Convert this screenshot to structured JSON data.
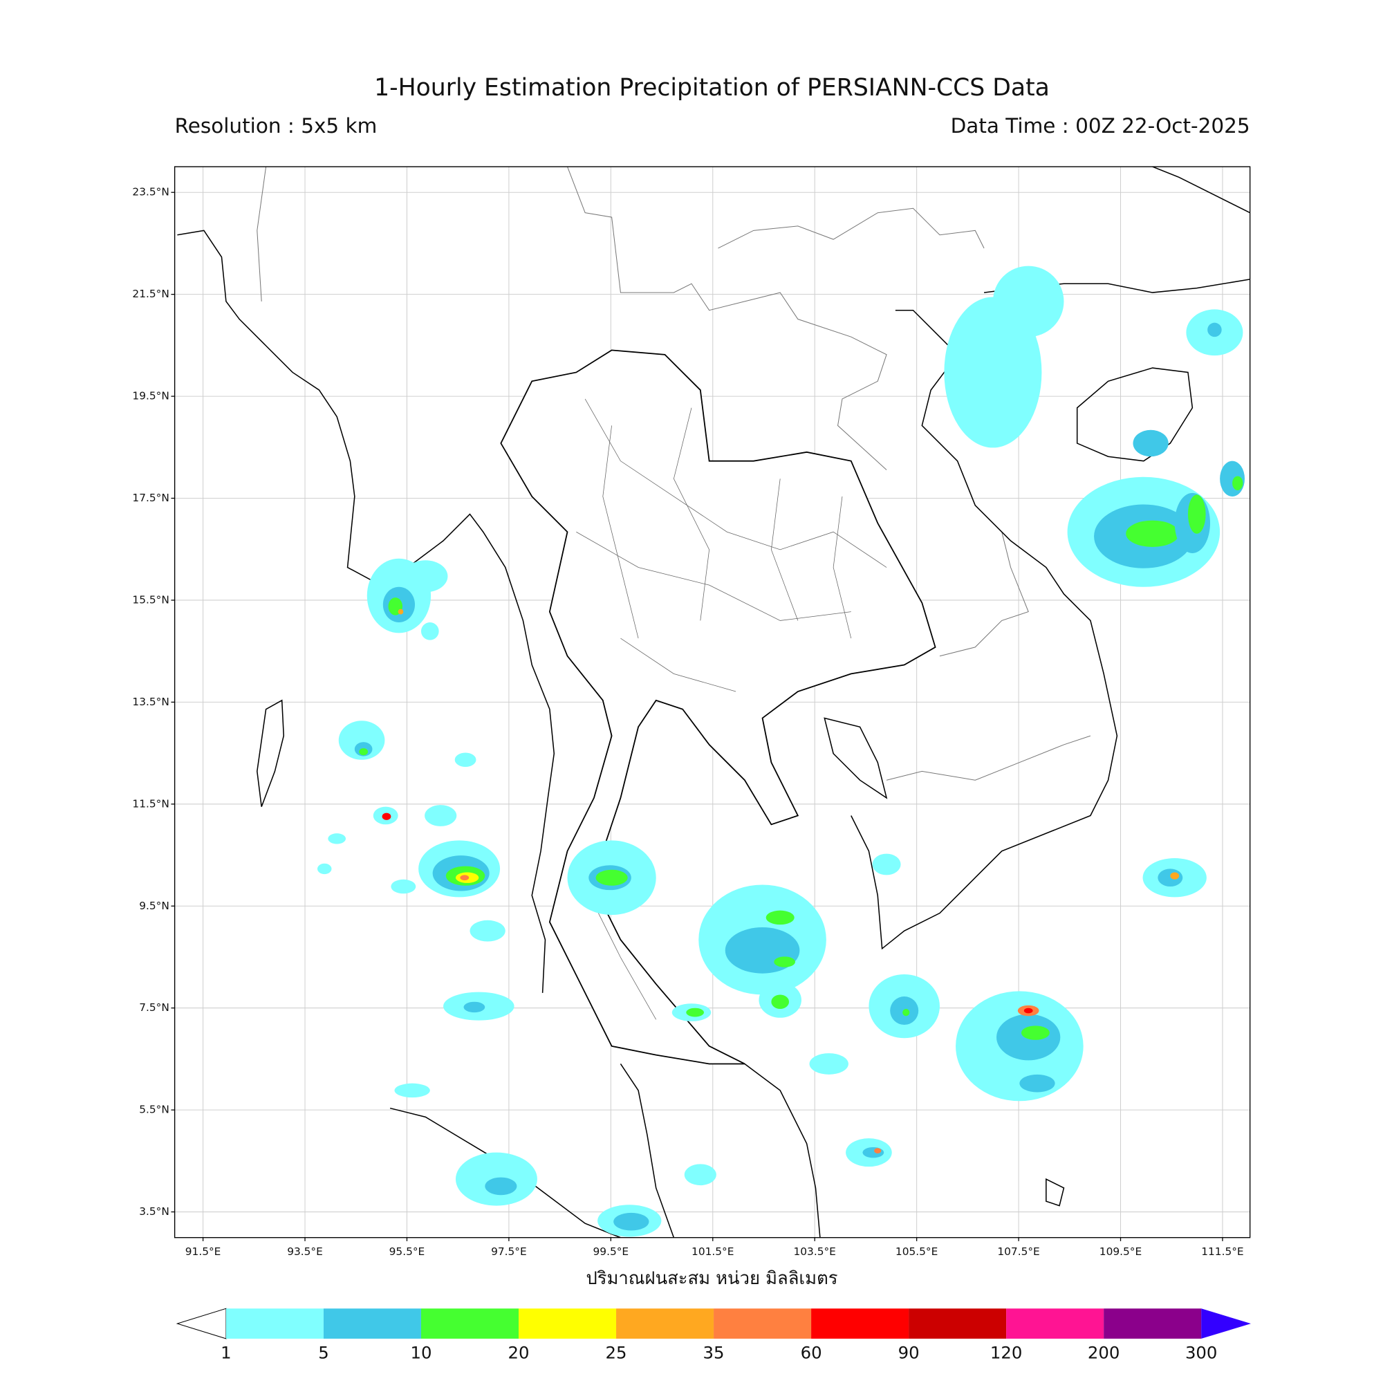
{
  "header": {
    "title": "1-Hourly Estimation Precipitation of PERSIANN-CCS Data",
    "resolution": "Resolution : 5x5 km",
    "data_time": "Data Time : 00Z 22-Oct-2025"
  },
  "map": {
    "lat_ticks": [
      "23.5°N",
      "21.5°N",
      "19.5°N",
      "17.5°N",
      "15.5°N",
      "13.5°N",
      "11.5°N",
      "9.5°N",
      "7.5°N",
      "5.5°N",
      "3.5°N"
    ],
    "lon_ticks": [
      "91.5°E",
      "93.5°E",
      "95.5°E",
      "97.5°E",
      "99.5°E",
      "101.5°E",
      "103.5°E",
      "105.5°E",
      "107.5°E",
      "109.5°E",
      "111.5°E"
    ],
    "xlabel": "ปริมาณฝนสะสม หน่วย มิลลิเมตร"
  },
  "colorbar": {
    "levels": [
      1,
      5,
      10,
      20,
      25,
      35,
      60,
      90,
      120,
      200,
      300
    ],
    "colors": [
      "#80ffff",
      "#40c8e8",
      "#45ff30",
      "#ffff00",
      "#ffa820",
      "#ff8040",
      "#ff0000",
      "#cc0000",
      "#ff1493",
      "#8b008b"
    ],
    "under_color": "#ffffff",
    "over_color": "#3300ff"
  }
}
